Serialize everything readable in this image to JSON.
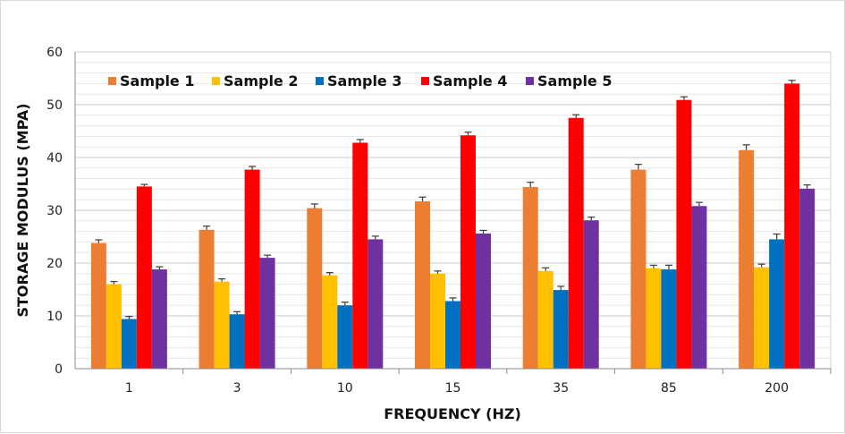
{
  "chart_data": {
    "type": "bar",
    "xlabel": "FREQUENCY (HZ)",
    "ylabel": "STORAGE MODULUS  (MPA)",
    "ylim": [
      0,
      60
    ],
    "yticks": [
      0,
      10,
      20,
      30,
      40,
      50,
      60
    ],
    "grid": true,
    "legend_position": "top-left",
    "categories": [
      "1",
      "3",
      "10",
      "15",
      "35",
      "85",
      "200"
    ],
    "series": [
      {
        "name": "Sample 1",
        "color": "#ED7D31",
        "values": [
          23.8,
          26.3,
          30.4,
          31.7,
          34.4,
          37.7,
          41.4
        ],
        "errors": [
          0.6,
          0.7,
          0.8,
          0.8,
          0.9,
          1.0,
          1.0
        ]
      },
      {
        "name": "Sample 2",
        "color": "#FFC000",
        "values": [
          16.0,
          16.5,
          17.7,
          18.0,
          18.5,
          19.0,
          19.2
        ],
        "errors": [
          0.5,
          0.5,
          0.5,
          0.5,
          0.6,
          0.6,
          0.6
        ]
      },
      {
        "name": "Sample 3",
        "color": "#0070C0",
        "values": [
          9.4,
          10.3,
          12.0,
          12.8,
          14.9,
          18.8,
          24.5
        ],
        "errors": [
          0.5,
          0.5,
          0.6,
          0.6,
          0.7,
          0.8,
          1.0
        ]
      },
      {
        "name": "Sample 4",
        "color": "#FF0000",
        "values": [
          34.5,
          37.7,
          42.8,
          44.2,
          47.5,
          50.9,
          54.0
        ],
        "errors": [
          0.4,
          0.6,
          0.6,
          0.6,
          0.6,
          0.6,
          0.6
        ]
      },
      {
        "name": "Sample 5",
        "color": "#7030A0",
        "values": [
          18.8,
          21.0,
          24.5,
          25.6,
          28.1,
          30.8,
          34.1
        ],
        "errors": [
          0.5,
          0.5,
          0.6,
          0.6,
          0.6,
          0.7,
          0.7
        ]
      }
    ]
  }
}
